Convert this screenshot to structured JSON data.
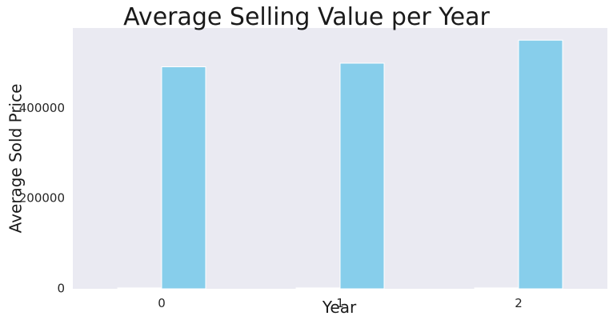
{
  "chart_data": {
    "type": "bar",
    "title": "Average Selling Value per Year",
    "xlabel": "Year",
    "ylabel": "Average Sold Price",
    "categories": [
      "0",
      "1",
      "2"
    ],
    "series": [
      {
        "values": [
          2000,
          2000,
          2000
        ],
        "color": "#ffffff"
      },
      {
        "values": [
          492000,
          500000,
          551000
        ],
        "color": "#87ceeb"
      }
    ],
    "yticks": [
      0,
      200000,
      400000
    ],
    "ytick_labels": [
      "0",
      "200000",
      "400000"
    ],
    "ylim": [
      0,
      578000
    ],
    "grid": false,
    "background": "#eaeaf2"
  }
}
